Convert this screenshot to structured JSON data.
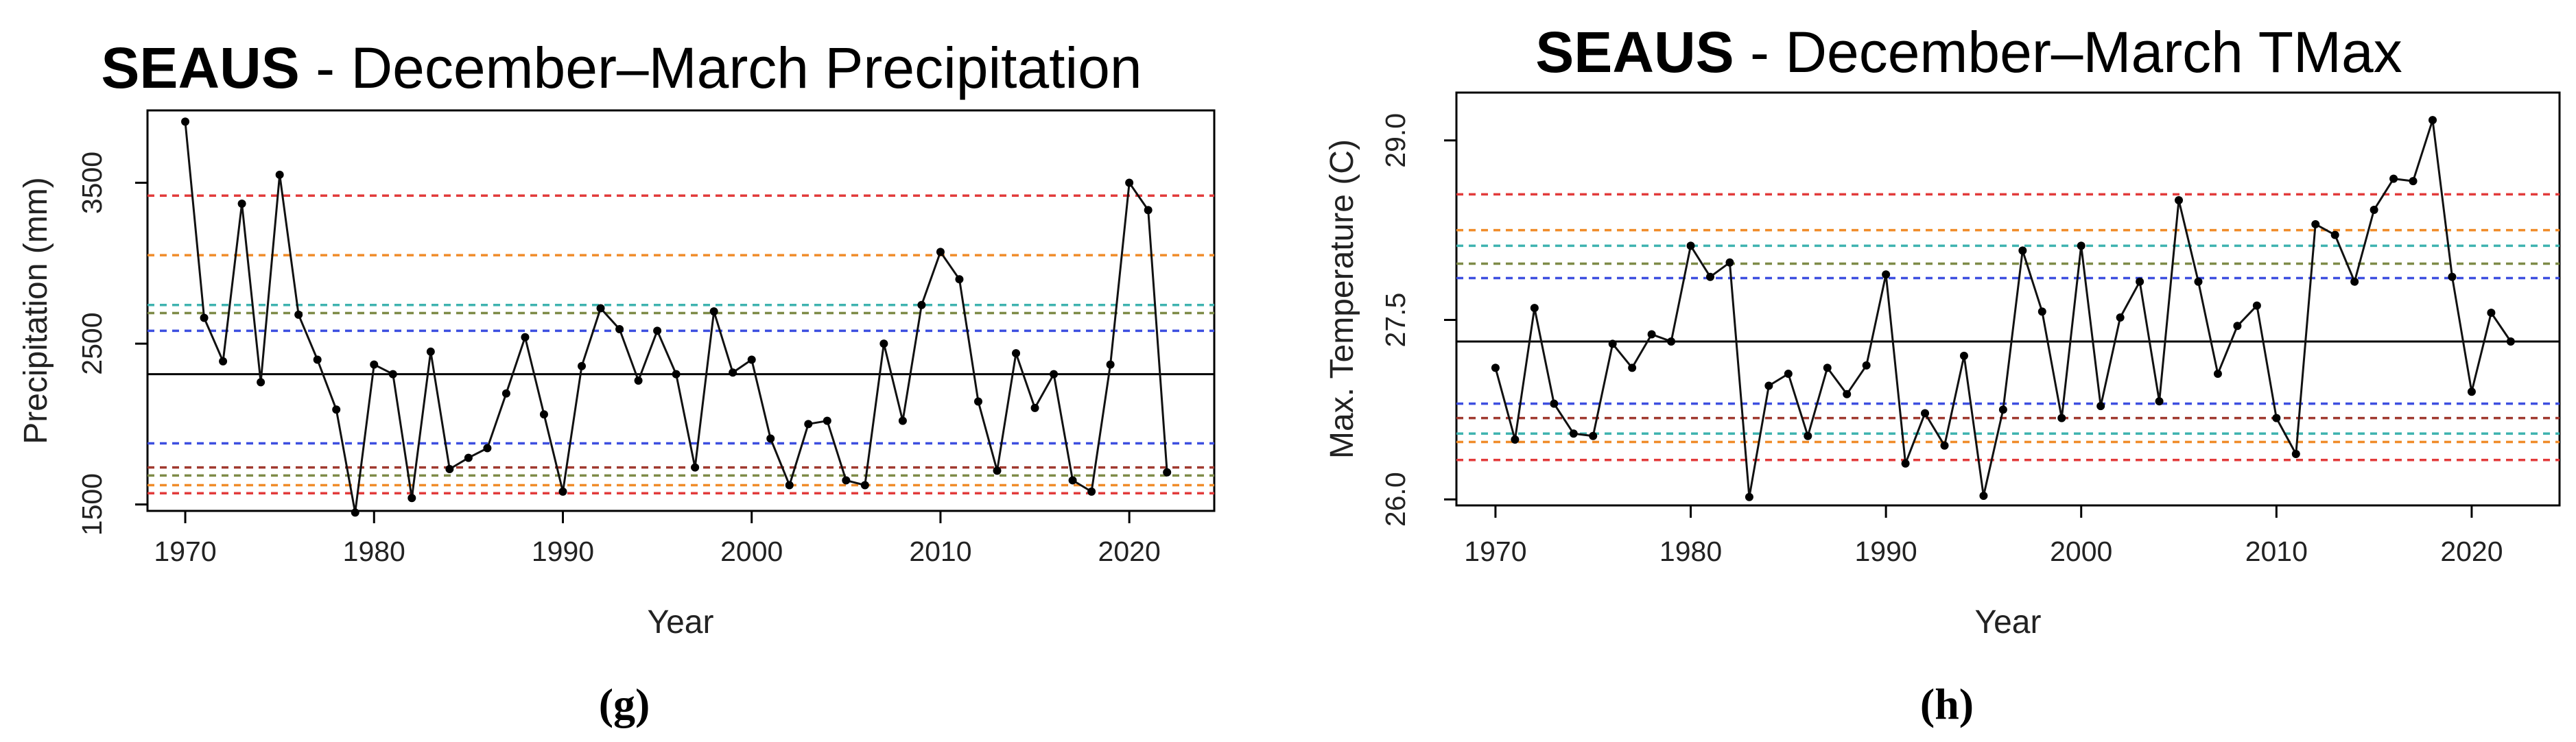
{
  "chart_data": [
    {
      "type": "line",
      "panel": "(g)",
      "title_bold": "SEAUS",
      "title_rest": " - December–March Precipitation",
      "xlabel": "Year",
      "ylabel": "Precipitation (mm)",
      "xlim": [
        1968,
        2024.5
      ],
      "ylim": [
        1460,
        3950
      ],
      "xticks": [
        1970,
        1980,
        1990,
        2000,
        2010,
        2020
      ],
      "yticks": [
        1500,
        2500,
        3500
      ],
      "series": [
        {
          "name": "Precipitation",
          "x": [
            1970,
            1971,
            1972,
            1973,
            1974,
            1975,
            1976,
            1977,
            1978,
            1979,
            1980,
            1981,
            1982,
            1983,
            1984,
            1985,
            1986,
            1987,
            1988,
            1989,
            1990,
            1991,
            1992,
            1993,
            1994,
            1995,
            1996,
            1997,
            1998,
            1999,
            2000,
            2001,
            2002,
            2003,
            2004,
            2005,
            2006,
            2007,
            2008,
            2009,
            2010,
            2011,
            2012,
            2013,
            2014,
            2015,
            2016,
            2017,
            2018,
            2019,
            2020,
            2021,
            2022
          ],
          "values": [
            3880,
            2660,
            2390,
            3370,
            2260,
            3550,
            2680,
            2400,
            2090,
            1450,
            2370,
            2310,
            1540,
            2450,
            1720,
            1790,
            1850,
            2190,
            2540,
            2060,
            1580,
            2360,
            2720,
            2590,
            2270,
            2580,
            2310,
            1730,
            2700,
            2320,
            2400,
            1910,
            1620,
            2000,
            2020,
            1650,
            1620,
            2500,
            2020,
            2740,
            3070,
            2900,
            2140,
            1710,
            2440,
            2100,
            2310,
            1650,
            1580,
            2370,
            3500,
            3330,
            1700
          ]
        }
      ],
      "hlines": [
        {
          "value": 2310,
          "color": "#000000",
          "style": "solid"
        },
        {
          "value": 3420,
          "color": "#e23b3b",
          "style": "dashed"
        },
        {
          "value": 3050,
          "color": "#f08c2a",
          "style": "dashed"
        },
        {
          "value": 2740,
          "color": "#3fb3b0",
          "style": "dashed"
        },
        {
          "value": 2690,
          "color": "#7e8b48",
          "style": "dashed"
        },
        {
          "value": 2580,
          "color": "#3d4fe0",
          "style": "dashed"
        },
        {
          "value": 1880,
          "color": "#3d4fe0",
          "style": "dashed"
        },
        {
          "value": 1730,
          "color": "#a0392f",
          "style": "dashed"
        },
        {
          "value": 1680,
          "color": "#7e8b48",
          "style": "dashed"
        },
        {
          "value": 1620,
          "color": "#f08c2a",
          "style": "dashed"
        },
        {
          "value": 1570,
          "color": "#e23b3b",
          "style": "dashed"
        }
      ]
    },
    {
      "type": "line",
      "panel": "(h)",
      "title_bold": "SEAUS",
      "title_rest": " - December–March TMax",
      "xlabel": "Year",
      "ylabel": "Max. Temperature (C)",
      "xlim": [
        1968,
        2024.5
      ],
      "ylim": [
        25.95,
        29.4
      ],
      "xticks": [
        1970,
        1980,
        1990,
        2000,
        2010,
        2020
      ],
      "yticks": [
        26.0,
        27.5,
        29.0
      ],
      "ytick_labels": [
        "26.0",
        "27.5",
        "29.0"
      ],
      "series": [
        {
          "name": "TMax",
          "x": [
            1970,
            1971,
            1972,
            1973,
            1974,
            1975,
            1976,
            1977,
            1978,
            1979,
            1980,
            1981,
            1982,
            1983,
            1984,
            1985,
            1986,
            1987,
            1988,
            1989,
            1990,
            1991,
            1992,
            1993,
            1994,
            1995,
            1996,
            1997,
            1998,
            1999,
            2000,
            2001,
            2002,
            2003,
            2004,
            2005,
            2006,
            2007,
            2008,
            2009,
            2010,
            2011,
            2012,
            2013,
            2014,
            2015,
            2016,
            2017,
            2018,
            2019,
            2020,
            2021,
            2022
          ],
          "values": [
            27.1,
            26.5,
            27.6,
            26.8,
            26.55,
            26.53,
            27.3,
            27.1,
            27.38,
            27.32,
            28.12,
            27.86,
            27.98,
            26.02,
            26.95,
            27.05,
            26.53,
            27.1,
            26.88,
            27.12,
            27.88,
            26.3,
            26.72,
            26.45,
            27.2,
            26.03,
            26.75,
            28.08,
            27.57,
            26.68,
            28.12,
            26.78,
            27.52,
            27.82,
            26.82,
            28.5,
            27.82,
            27.05,
            27.45,
            27.62,
            26.68,
            26.38,
            28.3,
            28.21,
            27.82,
            28.42,
            28.68,
            28.66,
            29.17,
            27.86,
            26.9,
            27.56,
            27.32
          ]
        }
      ],
      "hlines": [
        {
          "value": 27.32,
          "color": "#000000",
          "style": "solid"
        },
        {
          "value": 28.55,
          "color": "#e23b3b",
          "style": "dashed"
        },
        {
          "value": 28.25,
          "color": "#f08c2a",
          "style": "dashed"
        },
        {
          "value": 28.12,
          "color": "#3fb3b0",
          "style": "dashed"
        },
        {
          "value": 27.97,
          "color": "#7e8b48",
          "style": "dashed"
        },
        {
          "value": 27.85,
          "color": "#3d4fe0",
          "style": "dashed"
        },
        {
          "value": 26.8,
          "color": "#3d4fe0",
          "style": "dashed"
        },
        {
          "value": 26.68,
          "color": "#a0392f",
          "style": "dashed"
        },
        {
          "value": 26.55,
          "color": "#3fb3b0",
          "style": "dashed"
        },
        {
          "value": 26.48,
          "color": "#f08c2a",
          "style": "dashed"
        },
        {
          "value": 26.33,
          "color": "#e23b3b",
          "style": "dashed"
        }
      ]
    }
  ]
}
